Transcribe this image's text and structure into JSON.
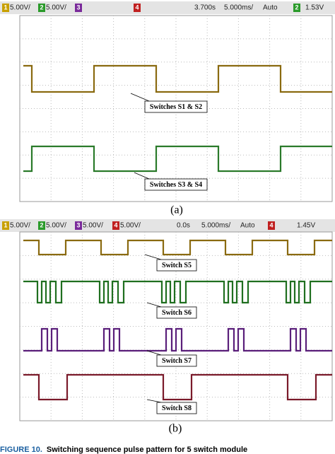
{
  "figure_a": {
    "status_bar": [
      "1",
      "5.00V/",
      "2",
      "5.00V/",
      "3",
      "4",
      "3.700s",
      "5.000ms/",
      "Auto",
      "2",
      "1.53V"
    ],
    "labels": [
      "Switches S1 & S2",
      "Switches S3 & S4"
    ],
    "caption": "(a)"
  },
  "figure_b": {
    "status_bar": [
      "1",
      "5.00V/",
      "2",
      "5.00V/",
      "3",
      "5.00V/",
      "4",
      "5.00V/",
      "0.0s",
      "5.000ms/",
      "Auto",
      "4",
      "1.45V"
    ],
    "labels": [
      "Switch S5",
      "Switch S6",
      "Switch S7",
      "Switch S8"
    ],
    "caption": "(b)"
  },
  "figure_caption": {
    "number": "FIGURE 10.",
    "text": "Switching sequence pulse pattern for 5 switch module"
  }
}
